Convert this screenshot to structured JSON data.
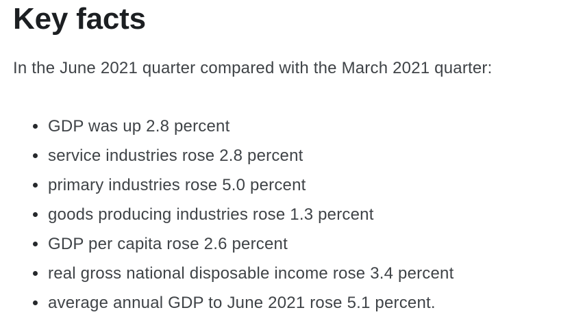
{
  "page": {
    "title": "Key facts",
    "intro": "In the June 2021 quarter compared with the March 2021 quarter:",
    "bullets": [
      "GDP was up 2.8 percent",
      "service industries rose 2.8 percent",
      "primary industries rose 5.0 percent",
      "goods producing industries rose 1.3 percent",
      "GDP per capita rose 2.6 percent",
      "real gross national disposable income rose 3.4 percent",
      "average annual GDP to June 2021 rose 5.1 percent."
    ],
    "colors": {
      "background": "#ffffff",
      "heading_text": "#1c1f22",
      "body_text": "#3f4347",
      "bullet_marker": "#26292c"
    }
  }
}
